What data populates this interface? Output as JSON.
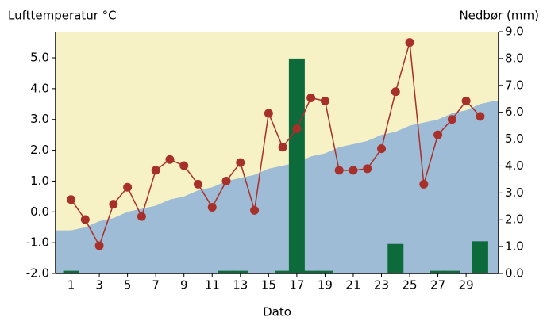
{
  "chart_data": {
    "type": "combo",
    "y_label": "Lufttemperatur °C",
    "y2_label": "Nedbør (mm)",
    "x_label": "Dato",
    "x": [
      1,
      2,
      3,
      4,
      5,
      6,
      7,
      8,
      9,
      10,
      11,
      12,
      13,
      14,
      15,
      16,
      17,
      18,
      19,
      20,
      21,
      22,
      23,
      24,
      25,
      26,
      27,
      28,
      29,
      30,
      31
    ],
    "xlim": [
      -0.1,
      31.3
    ],
    "xticks": [
      1,
      3,
      5,
      7,
      9,
      11,
      13,
      15,
      17,
      19,
      21,
      23,
      25,
      27,
      29
    ],
    "ylim": [
      -2,
      5.85
    ],
    "yticks": [
      {
        "value": -2,
        "label": "-2.0"
      },
      {
        "value": -1,
        "label": "-1.0"
      },
      {
        "value": 0,
        "label": "0.0"
      },
      {
        "value": 1,
        "label": "1.0"
      },
      {
        "value": 2,
        "label": "2.0"
      },
      {
        "value": 3,
        "label": "3.0"
      },
      {
        "value": 4,
        "label": "4.0"
      },
      {
        "value": 5,
        "label": "5.0"
      }
    ],
    "y2lim": [
      0,
      9
    ],
    "y2ticks": [
      {
        "value": 0,
        "label": "0.0"
      },
      {
        "value": 1,
        "label": "1.0"
      },
      {
        "value": 2,
        "label": "2.0"
      },
      {
        "value": 3,
        "label": "3.0"
      },
      {
        "value": 4,
        "label": "4.0"
      },
      {
        "value": 5,
        "label": "5.0"
      },
      {
        "value": 6,
        "label": "6.0"
      },
      {
        "value": 7,
        "label": "7.0"
      },
      {
        "value": 8,
        "label": "8.0"
      },
      {
        "value": 9,
        "label": "9.0"
      }
    ],
    "background": "#f7f2c6",
    "series": [
      {
        "kind": "area",
        "color": "#9ebcd6",
        "values": [
          -0.6,
          -0.5,
          -0.3,
          -0.2,
          0.0,
          0.1,
          0.2,
          0.4,
          0.5,
          0.7,
          0.8,
          1.0,
          1.1,
          1.2,
          1.4,
          1.5,
          1.6,
          1.8,
          1.9,
          2.1,
          2.2,
          2.3,
          2.5,
          2.6,
          2.8,
          2.9,
          3.0,
          3.2,
          3.3,
          3.5,
          3.6
        ]
      },
      {
        "kind": "bar",
        "axis": "y2",
        "color": "#0d6a3a",
        "values": [
          0.1,
          0,
          0,
          0,
          0,
          0,
          0,
          0,
          0,
          0,
          0,
          0.1,
          0.1,
          0,
          0,
          0.1,
          8.0,
          0.1,
          0.1,
          0,
          0,
          0,
          0,
          1.1,
          0,
          0,
          0.1,
          0.1,
          0,
          1.2,
          0
        ]
      },
      {
        "kind": "line",
        "color": "#a8302a",
        "values": [
          0.4,
          -0.25,
          -1.1,
          0.25,
          0.8,
          -0.15,
          1.35,
          1.7,
          1.5,
          0.9,
          0.15,
          1.0,
          1.6,
          0.05,
          3.2,
          2.1,
          2.7,
          3.7,
          3.6,
          1.35,
          1.35,
          1.4,
          2.05,
          3.9,
          5.5,
          0.9,
          2.5,
          3.0,
          3.6,
          3.1,
          null
        ]
      }
    ]
  }
}
